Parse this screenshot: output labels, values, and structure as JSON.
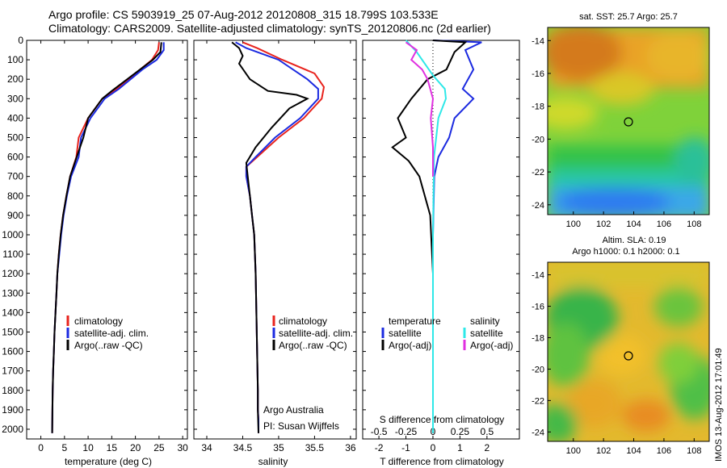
{
  "header": {
    "line1": "Argo profile: CS 5903919_25 07-Aug-2012 20120808_315 18.799S 103.533E",
    "line2": "Climatology: CARS2009. Satellite-adjusted climatology: synTS_20120806.nc (2d earlier)"
  },
  "depth_ticks": [
    "0",
    "100",
    "200",
    "300",
    "400",
    "500",
    "600",
    "700",
    "800",
    "900",
    "1000",
    "1100",
    "1200",
    "1300",
    "1400",
    "1500",
    "1600",
    "1700",
    "1800",
    "1900",
    "2000"
  ],
  "colors": {
    "climatology": "#e8231d",
    "satellite": "#1b2ae0",
    "argo": "#000000",
    "sat_salinity": "#2ee8e8",
    "argo_adj_salinity": "#e030e0"
  },
  "panels": {
    "temperature": {
      "xlabel": "temperature (deg C)",
      "xticks": [
        "0",
        "5",
        "10",
        "15",
        "20",
        "25",
        "30"
      ],
      "legend": [
        "climatology",
        "satellite-adj. clim.",
        "Argo(..raw -QC)"
      ]
    },
    "salinity": {
      "xlabel": "salinity",
      "xticks": [
        "34",
        "34.5",
        "35",
        "35.5",
        "36"
      ],
      "legend": [
        "climatology",
        "satellite-adj. clim.",
        "Argo(..raw -QC)"
      ],
      "note1": "Argo Australia",
      "note2": "PI: Susan Wijffels"
    },
    "difference": {
      "top_label": "S difference from climatology",
      "top_ticks": [
        "-0.5",
        "-0.25",
        "0",
        "0.25",
        "0.5"
      ],
      "xlabel": "T difference from climatology",
      "xticks": [
        "-2",
        "-1",
        "0",
        "1",
        "2"
      ],
      "legend_temp_title": "temperature",
      "legend_sal_title": "salinity",
      "legend_temp": [
        "satellite",
        "Argo(-adj)"
      ],
      "legend_sal": [
        "satellite",
        "Argo(-adj)"
      ]
    },
    "map_sst": {
      "title": "sat. SST: 25.7  Argo: 25.7",
      "yticks": [
        "-14",
        "-16",
        "-18",
        "-20",
        "-22",
        "-24"
      ],
      "xticks": [
        "100",
        "102",
        "104",
        "106",
        "108"
      ]
    },
    "map_sla": {
      "title1": "Altim. SLA: 0.19",
      "title2": "Argo h1000: 0.1  h2000: 0.1",
      "yticks": [
        "-14",
        "-16",
        "-18",
        "-20",
        "-22",
        "-24"
      ],
      "xticks": [
        "100",
        "102",
        "104",
        "106",
        "108"
      ]
    }
  },
  "stamp": "IMOS 13-Aug-2012 17:01:49",
  "chart_data": [
    {
      "type": "line",
      "title": "",
      "xlabel": "temperature (deg C)",
      "ylabel": "",
      "xlim": [
        -3,
        31
      ],
      "ylim": [
        2050,
        0
      ],
      "series": [
        {
          "name": "climatology",
          "x": [
            25,
            24.8,
            23.5,
            21,
            16,
            13,
            10,
            8,
            7.5,
            6.2,
            5.4,
            4.7,
            4.2,
            3.8,
            3.5,
            3.3,
            3.1,
            2.9,
            2.75,
            2.6,
            2.5,
            2.45,
            2.4
          ],
          "y": [
            10,
            50,
            100,
            150,
            250,
            300,
            400,
            500,
            600,
            700,
            800,
            900,
            1000,
            1100,
            1200,
            1300,
            1400,
            1500,
            1600,
            1700,
            1800,
            1900,
            2020
          ]
        },
        {
          "name": "satellite-adj. clim.",
          "x": [
            26,
            26,
            24.5,
            21.5,
            16.5,
            13.5,
            10.5,
            8.5,
            8,
            6.4,
            5.5,
            4.8,
            4.3,
            3.9,
            3.5,
            3.3,
            3.1,
            2.9,
            2.75,
            2.6,
            2.5,
            2.45,
            2.4
          ],
          "y": [
            10,
            50,
            100,
            150,
            250,
            300,
            400,
            500,
            600,
            700,
            800,
            900,
            1000,
            1100,
            1200,
            1300,
            1400,
            1500,
            1600,
            1700,
            1800,
            1900,
            2020
          ]
        },
        {
          "name": "Argo(..raw -QC)",
          "x": [
            25.5,
            25.3,
            23.7,
            21,
            15,
            13,
            10,
            9,
            7.3,
            6.2,
            5.4,
            4.7,
            4.2,
            3.8,
            3.5,
            3.3,
            3.1,
            2.9,
            2.75,
            2.6,
            2.5,
            2.45,
            2.4
          ],
          "y": [
            10,
            60,
            100,
            150,
            260,
            300,
            400,
            500,
            620,
            700,
            800,
            900,
            1000,
            1100,
            1200,
            1300,
            1400,
            1500,
            1600,
            1700,
            1800,
            1900,
            2020
          ]
        }
      ]
    },
    {
      "type": "line",
      "title": "",
      "xlabel": "salinity",
      "ylabel": "",
      "xlim": [
        33.82,
        36.08
      ],
      "ylim": [
        2050,
        0
      ],
      "series": [
        {
          "name": "climatology",
          "x": [
            34.5,
            34.7,
            35.05,
            35.5,
            35.63,
            35.6,
            35.35,
            35.0,
            34.7,
            34.55,
            34.55,
            34.6,
            34.63,
            34.66,
            34.68,
            34.69,
            34.7,
            34.71,
            34.71,
            34.72,
            34.72,
            34.72
          ],
          "y": [
            10,
            40,
            100,
            170,
            240,
            300,
            400,
            500,
            600,
            650,
            700,
            800,
            900,
            1000,
            1200,
            1400,
            1600,
            1800,
            1900,
            1950,
            2000,
            2020
          ]
        },
        {
          "name": "satellite-adj. clim.",
          "x": [
            34.4,
            34.55,
            35.0,
            35.4,
            35.55,
            35.55,
            35.3,
            34.95,
            34.68,
            34.55,
            34.55,
            34.6,
            34.63,
            34.66,
            34.68,
            34.69,
            34.7,
            34.71,
            34.71,
            34.72,
            34.72,
            34.72
          ],
          "y": [
            10,
            40,
            100,
            200,
            250,
            300,
            400,
            500,
            600,
            650,
            700,
            800,
            900,
            1000,
            1200,
            1400,
            1600,
            1800,
            1900,
            1950,
            2000,
            2020
          ]
        },
        {
          "name": "Argo(..raw -QC)",
          "x": [
            34.35,
            34.45,
            34.5,
            34.45,
            34.6,
            34.85,
            35.25,
            35.4,
            35.15,
            34.9,
            34.68,
            34.55,
            34.57,
            34.6,
            34.63,
            34.66,
            34.68,
            34.69,
            34.7,
            34.71,
            34.71,
            34.72
          ],
          "y": [
            10,
            40,
            80,
            120,
            200,
            260,
            280,
            300,
            350,
            450,
            550,
            630,
            700,
            800,
            900,
            1000,
            1200,
            1400,
            1600,
            1800,
            1900,
            2020
          ]
        }
      ]
    },
    {
      "type": "line",
      "title": "",
      "xlabel": "T difference from climatology",
      "x2label": "S difference from climatology",
      "xlim": [
        -2.6,
        3.2
      ],
      "x2lim": [
        -0.65,
        0.8
      ],
      "ylim": [
        2050,
        0
      ],
      "series": [
        {
          "name": "satellite (temperature)",
          "x": [
            0,
            1.8,
            1.2,
            1.5,
            1.1,
            1.5,
            0.8,
            0.6,
            0.2,
            0.05,
            0,
            0
          ],
          "y": [
            0,
            10,
            50,
            150,
            250,
            300,
            400,
            500,
            600,
            700,
            1000,
            2020
          ]
        },
        {
          "name": "Argo(-adj) (temperature)",
          "x": [
            0,
            1.2,
            0.8,
            0.5,
            -0.2,
            -0.8,
            -1.3,
            -1.0,
            -1.5,
            -0.9,
            -0.5,
            -0.1,
            0,
            0
          ],
          "y": [
            0,
            10,
            60,
            150,
            200,
            300,
            400,
            500,
            550,
            620,
            700,
            900,
            1200,
            2020
          ]
        },
        {
          "name": "satellite (salinity)",
          "x": [
            -0.25,
            -0.15,
            0,
            0.11,
            0.12,
            0.05,
            0.01,
            0,
            0
          ],
          "y": [
            0,
            60,
            180,
            250,
            300,
            400,
            600,
            1000,
            2020
          ]
        },
        {
          "name": "Argo(-adj) (salinity)",
          "x": [
            -0.25,
            -0.15,
            -0.2,
            -0.1,
            -0.05,
            0,
            -0.02,
            0,
            0
          ],
          "y": [
            10,
            50,
            100,
            150,
            200,
            300,
            400,
            550,
            700
          ]
        }
      ]
    }
  ]
}
